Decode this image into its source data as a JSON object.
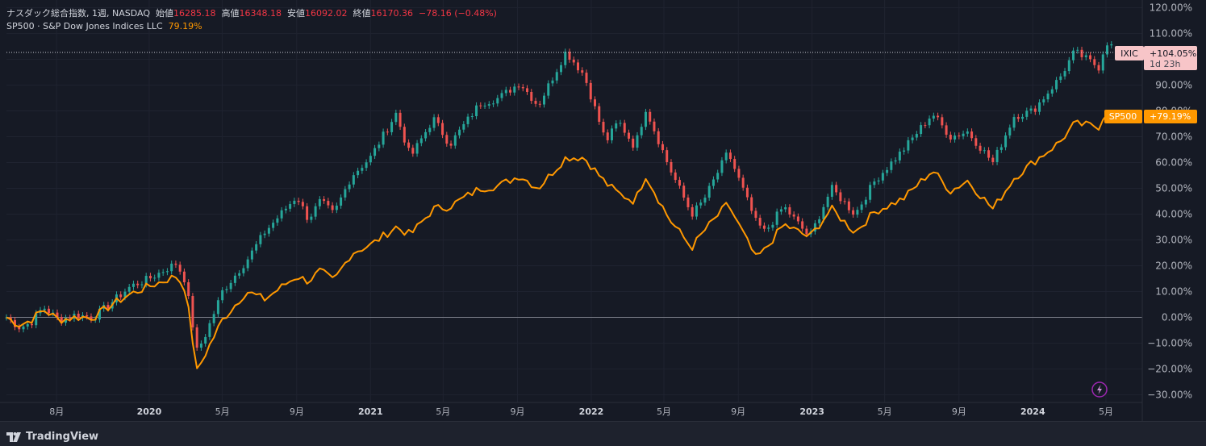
{
  "legend": {
    "symbol_name": "ナスダック総合指数",
    "interval": "1週",
    "exchange": "NASDAQ",
    "open_label": "始値",
    "open": "16285.18",
    "high_label": "高値",
    "high": "16348.18",
    "low_label": "安値",
    "low": "16092.02",
    "close_label": "終値",
    "close": "16170.36",
    "change": "−78.16 (−0.48%)",
    "compare_name": "SP500 · S&P Dow Jones Indices LLC",
    "compare_value": "79.19%"
  },
  "badges": {
    "ixic_label": "IXIC",
    "ixic_value": "+104.05%",
    "ixic_countdown": "1d 23h",
    "sp500_label": "SP500",
    "sp500_value": "+79.19%"
  },
  "brand": "TradingView",
  "colors": {
    "up": "#26a69a",
    "down": "#ef5350",
    "sp500_line": "#ff9800",
    "background": "#161a25",
    "ixic_badge": "#f7c5c8"
  },
  "chart_data": {
    "type": "line",
    "title": "ナスダック総合指数, 1週, NASDAQ",
    "y_axis": {
      "unit": "%",
      "ticks": [
        "120.00%",
        "110.00%",
        "100.00%",
        "90.00%",
        "80.00%",
        "70.00%",
        "60.00%",
        "50.00%",
        "40.00%",
        "30.00%",
        "20.00%",
        "10.00%",
        "0.00%",
        "−10.00%",
        "−20.00%",
        "−30.00%"
      ],
      "tick_values": [
        120,
        110,
        100,
        90,
        80,
        70,
        60,
        50,
        40,
        30,
        20,
        10,
        0,
        -10,
        -20,
        -30
      ],
      "range": [
        -33,
        123
      ]
    },
    "x_axis": {
      "range": [
        "2019-05-10",
        "2024-06-30"
      ],
      "ticks": [
        {
          "label": "8月",
          "date": "2019-08-01",
          "year": false
        },
        {
          "label": "2020",
          "date": "2020-01-01",
          "year": true
        },
        {
          "label": "5月",
          "date": "2020-05-01",
          "year": false
        },
        {
          "label": "9月",
          "date": "2020-09-01",
          "year": false
        },
        {
          "label": "2021",
          "date": "2021-01-01",
          "year": true
        },
        {
          "label": "5月",
          "date": "2021-05-01",
          "year": false
        },
        {
          "label": "9月",
          "date": "2021-09-01",
          "year": false
        },
        {
          "label": "2022",
          "date": "2022-01-01",
          "year": true
        },
        {
          "label": "5月",
          "date": "2022-05-01",
          "year": false
        },
        {
          "label": "9月",
          "date": "2022-09-01",
          "year": false
        },
        {
          "label": "2023",
          "date": "2023-01-01",
          "year": true
        },
        {
          "label": "5月",
          "date": "2023-05-01",
          "year": false
        },
        {
          "label": "9月",
          "date": "2023-09-01",
          "year": false
        },
        {
          "label": "2024",
          "date": "2024-01-01",
          "year": true
        },
        {
          "label": "5月",
          "date": "2024-05-01",
          "year": false
        }
      ]
    },
    "grid": true,
    "series": [
      {
        "name": "IXIC",
        "style": "candlestick-close",
        "points": [
          {
            "date": "2019-05-10",
            "y": 0
          },
          {
            "date": "2019-06-01",
            "y": -4
          },
          {
            "date": "2019-06-20",
            "y": -2
          },
          {
            "date": "2019-07-10",
            "y": 4
          },
          {
            "date": "2019-08-05",
            "y": -1
          },
          {
            "date": "2019-09-01",
            "y": 1
          },
          {
            "date": "2019-10-01",
            "y": 0
          },
          {
            "date": "2019-11-01",
            "y": 6
          },
          {
            "date": "2019-12-01",
            "y": 12
          },
          {
            "date": "2020-01-01",
            "y": 15
          },
          {
            "date": "2020-02-15",
            "y": 21
          },
          {
            "date": "2020-03-01",
            "y": 14
          },
          {
            "date": "2020-03-20",
            "y": -13
          },
          {
            "date": "2020-04-01",
            "y": -8
          },
          {
            "date": "2020-05-01",
            "y": 10
          },
          {
            "date": "2020-06-10",
            "y": 22
          },
          {
            "date": "2020-07-10",
            "y": 33
          },
          {
            "date": "2020-09-01",
            "y": 47
          },
          {
            "date": "2020-09-20",
            "y": 38
          },
          {
            "date": "2020-10-10",
            "y": 45
          },
          {
            "date": "2020-11-01",
            "y": 40
          },
          {
            "date": "2020-12-01",
            "y": 55
          },
          {
            "date": "2021-01-01",
            "y": 62
          },
          {
            "date": "2021-02-12",
            "y": 79
          },
          {
            "date": "2021-03-08",
            "y": 62
          },
          {
            "date": "2021-04-15",
            "y": 77
          },
          {
            "date": "2021-05-12",
            "y": 67
          },
          {
            "date": "2021-07-01",
            "y": 83
          },
          {
            "date": "2021-08-01",
            "y": 85
          },
          {
            "date": "2021-09-05",
            "y": 91
          },
          {
            "date": "2021-10-05",
            "y": 82
          },
          {
            "date": "2021-11-20",
            "y": 103
          },
          {
            "date": "2021-12-20",
            "y": 94
          },
          {
            "date": "2022-01-25",
            "y": 68
          },
          {
            "date": "2022-02-15",
            "y": 76
          },
          {
            "date": "2022-03-14",
            "y": 66
          },
          {
            "date": "2022-04-01",
            "y": 81
          },
          {
            "date": "2022-05-10",
            "y": 58
          },
          {
            "date": "2022-06-16",
            "y": 40
          },
          {
            "date": "2022-07-05",
            "y": 45
          },
          {
            "date": "2022-08-15",
            "y": 64
          },
          {
            "date": "2022-09-30",
            "y": 37
          },
          {
            "date": "2022-10-15",
            "y": 33
          },
          {
            "date": "2022-11-15",
            "y": 43
          },
          {
            "date": "2022-12-28",
            "y": 31
          },
          {
            "date": "2023-02-02",
            "y": 50
          },
          {
            "date": "2023-03-13",
            "y": 40
          },
          {
            "date": "2023-04-15",
            "y": 53
          },
          {
            "date": "2023-06-01",
            "y": 65
          },
          {
            "date": "2023-07-19",
            "y": 79
          },
          {
            "date": "2023-08-18",
            "y": 70
          },
          {
            "date": "2023-09-15",
            "y": 72
          },
          {
            "date": "2023-10-27",
            "y": 60
          },
          {
            "date": "2023-12-01",
            "y": 78
          },
          {
            "date": "2024-01-01",
            "y": 80
          },
          {
            "date": "2024-02-15",
            "y": 93
          },
          {
            "date": "2024-03-10",
            "y": 103
          },
          {
            "date": "2024-04-19",
            "y": 97
          },
          {
            "date": "2024-05-01",
            "y": 107
          },
          {
            "date": "2024-05-15",
            "y": 104.05
          }
        ]
      },
      {
        "name": "SP500",
        "style": "line",
        "points": [
          {
            "date": "2019-05-10",
            "y": 0
          },
          {
            "date": "2019-06-01",
            "y": -3
          },
          {
            "date": "2019-06-20",
            "y": -1
          },
          {
            "date": "2019-07-10",
            "y": 3
          },
          {
            "date": "2019-08-05",
            "y": -1
          },
          {
            "date": "2019-09-01",
            "y": 0
          },
          {
            "date": "2019-10-01",
            "y": 0
          },
          {
            "date": "2019-11-01",
            "y": 5
          },
          {
            "date": "2019-12-01",
            "y": 9
          },
          {
            "date": "2020-01-01",
            "y": 12
          },
          {
            "date": "2020-02-15",
            "y": 16
          },
          {
            "date": "2020-03-01",
            "y": 11
          },
          {
            "date": "2020-03-20",
            "y": -21
          },
          {
            "date": "2020-04-01",
            "y": -15
          },
          {
            "date": "2020-05-01",
            "y": -1
          },
          {
            "date": "2020-06-10",
            "y": 10
          },
          {
            "date": "2020-07-10",
            "y": 7
          },
          {
            "date": "2020-09-01",
            "y": 16
          },
          {
            "date": "2020-09-20",
            "y": 14
          },
          {
            "date": "2020-10-10",
            "y": 18
          },
          {
            "date": "2020-11-01",
            "y": 14
          },
          {
            "date": "2020-12-01",
            "y": 25
          },
          {
            "date": "2021-01-01",
            "y": 28
          },
          {
            "date": "2021-02-12",
            "y": 35
          },
          {
            "date": "2021-03-08",
            "y": 32
          },
          {
            "date": "2021-04-15",
            "y": 42
          },
          {
            "date": "2021-05-12",
            "y": 43
          },
          {
            "date": "2021-07-01",
            "y": 50
          },
          {
            "date": "2021-08-01",
            "y": 51
          },
          {
            "date": "2021-09-05",
            "y": 55
          },
          {
            "date": "2021-10-05",
            "y": 50
          },
          {
            "date": "2021-11-20",
            "y": 62
          },
          {
            "date": "2021-12-20",
            "y": 62
          },
          {
            "date": "2022-01-25",
            "y": 52
          },
          {
            "date": "2022-02-15",
            "y": 48
          },
          {
            "date": "2022-03-14",
            "y": 45
          },
          {
            "date": "2022-04-01",
            "y": 55
          },
          {
            "date": "2022-05-10",
            "y": 38
          },
          {
            "date": "2022-06-16",
            "y": 27
          },
          {
            "date": "2022-07-05",
            "y": 33
          },
          {
            "date": "2022-08-15",
            "y": 44
          },
          {
            "date": "2022-09-30",
            "y": 23
          },
          {
            "date": "2022-10-15",
            "y": 26
          },
          {
            "date": "2022-11-15",
            "y": 36
          },
          {
            "date": "2022-12-28",
            "y": 31
          },
          {
            "date": "2023-02-02",
            "y": 42
          },
          {
            "date": "2023-03-13",
            "y": 33
          },
          {
            "date": "2023-04-15",
            "y": 41
          },
          {
            "date": "2023-06-01",
            "y": 46
          },
          {
            "date": "2023-07-19",
            "y": 57
          },
          {
            "date": "2023-08-18",
            "y": 49
          },
          {
            "date": "2023-09-15",
            "y": 53
          },
          {
            "date": "2023-10-27",
            "y": 42
          },
          {
            "date": "2023-12-01",
            "y": 54
          },
          {
            "date": "2024-01-01",
            "y": 60
          },
          {
            "date": "2024-02-15",
            "y": 68
          },
          {
            "date": "2024-03-10",
            "y": 75
          },
          {
            "date": "2024-04-19",
            "y": 74
          },
          {
            "date": "2024-05-01",
            "y": 80
          },
          {
            "date": "2024-05-15",
            "y": 79.19
          }
        ]
      }
    ]
  }
}
